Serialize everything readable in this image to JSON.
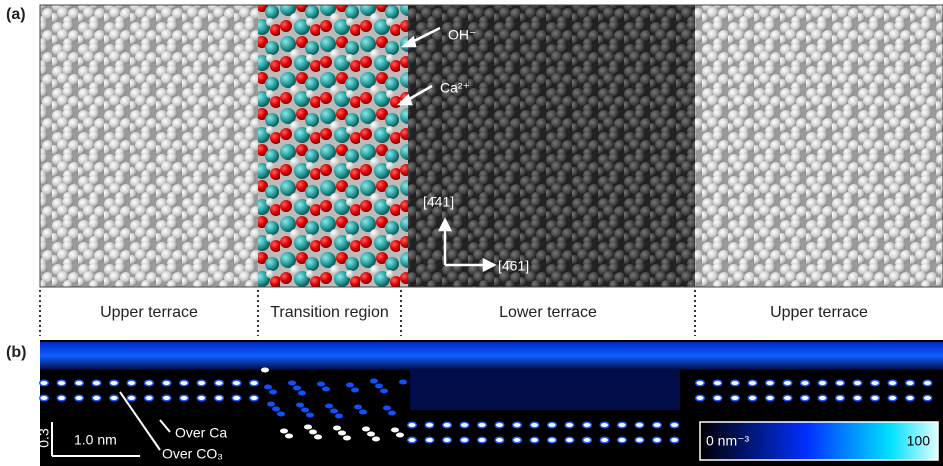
{
  "panel_a": {
    "label": "(a)",
    "annotations": {
      "hydroxide": "OH⁻",
      "calcium": "Ca²⁺"
    },
    "directions": {
      "vertical": "[4̄41]",
      "horizontal": "[4̄61]"
    }
  },
  "regions": [
    "Upper terrace",
    "Transition region",
    "Lower terrace",
    "Upper terrace"
  ],
  "panel_b": {
    "label": "(b)",
    "scale_bar_vertical": "0.3",
    "scale_bar_horizontal": "1.0 nm",
    "annotations": {
      "over_ca": "Over Ca",
      "over_co3": "Over CO₃"
    },
    "colorbar": {
      "min_label": "0 nm⁻³",
      "max_label": "100"
    }
  }
}
